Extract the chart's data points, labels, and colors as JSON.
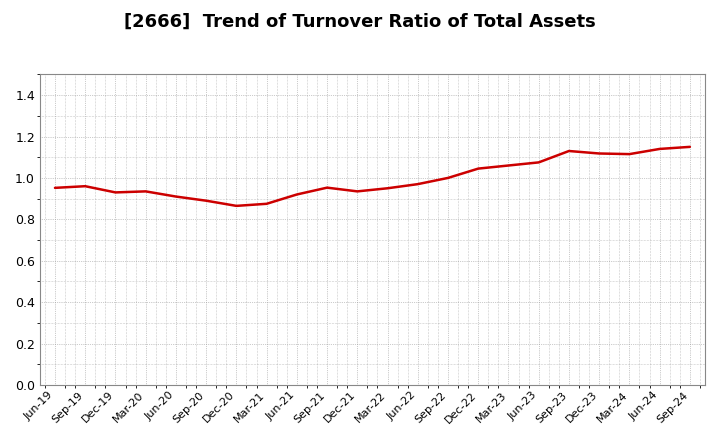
{
  "title": "[2666]  Trend of Turnover Ratio of Total Assets",
  "title_fontsize": 13,
  "line_color": "#CC0000",
  "line_width": 1.8,
  "background_color": "#ffffff",
  "grid_color": "#999999",
  "ylim": [
    0.0,
    1.5
  ],
  "yticks": [
    0.0,
    0.2,
    0.4,
    0.6,
    0.8,
    1.0,
    1.2,
    1.4
  ],
  "x_labels": [
    "Jun-19",
    "Sep-19",
    "Dec-19",
    "Mar-20",
    "Jun-20",
    "Sep-20",
    "Dec-20",
    "Mar-21",
    "Jun-21",
    "Sep-21",
    "Dec-21",
    "Mar-22",
    "Jun-22",
    "Sep-22",
    "Dec-22",
    "Mar-23",
    "Jun-23",
    "Sep-23",
    "Dec-23",
    "Mar-24",
    "Jun-24",
    "Sep-24"
  ],
  "y_values": [
    0.952,
    0.96,
    0.93,
    0.935,
    0.91,
    0.89,
    0.865,
    0.875,
    0.92,
    0.953,
    0.935,
    0.95,
    0.97,
    1.0,
    1.045,
    1.06,
    1.075,
    1.13,
    1.118,
    1.115,
    1.14,
    1.15
  ]
}
